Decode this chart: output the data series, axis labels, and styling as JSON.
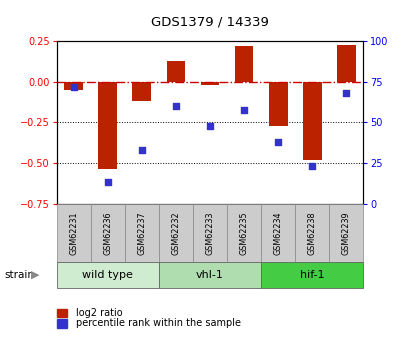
{
  "title": "GDS1379 / 14339",
  "samples": [
    "GSM62231",
    "GSM62236",
    "GSM62237",
    "GSM62232",
    "GSM62233",
    "GSM62235",
    "GSM62234",
    "GSM62238",
    "GSM62239"
  ],
  "log2_ratio": [
    -0.05,
    -0.54,
    -0.12,
    0.13,
    -0.02,
    0.22,
    -0.27,
    -0.48,
    0.23
  ],
  "percentile_rank": [
    72,
    13,
    33,
    60,
    48,
    58,
    38,
    23,
    68
  ],
  "ylim_left": [
    -0.75,
    0.25
  ],
  "ylim_right": [
    0,
    100
  ],
  "yticks_left": [
    0.25,
    0.0,
    -0.25,
    -0.5,
    -0.75
  ],
  "yticks_right": [
    100,
    75,
    50,
    25,
    0
  ],
  "bar_color": "#bb2200",
  "dot_color": "#3333cc",
  "hline_color": "#cc0000",
  "groups": [
    {
      "label": "wild type",
      "indices": [
        0,
        1,
        2
      ],
      "color": "#d0ecd0"
    },
    {
      "label": "vhl-1",
      "indices": [
        3,
        4,
        5
      ],
      "color": "#b0ddb0"
    },
    {
      "label": "hif-1",
      "indices": [
        6,
        7,
        8
      ],
      "color": "#44cc44"
    }
  ],
  "strain_label": "strain",
  "legend_bar_label": "log2 ratio",
  "legend_dot_label": "percentile rank within the sample",
  "sample_box_color": "#cccccc",
  "background_color": "#ffffff"
}
